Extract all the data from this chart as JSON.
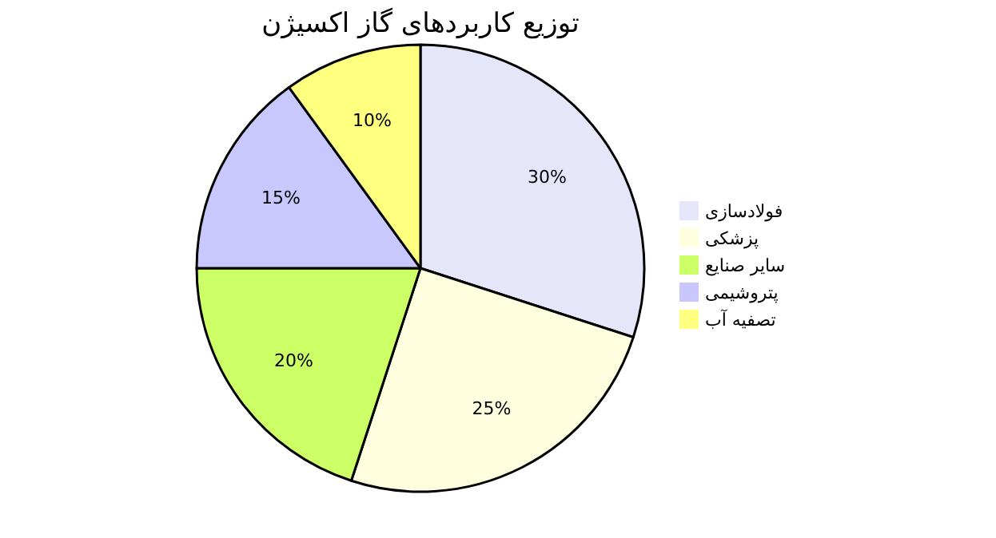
{
  "chart_data": {
    "type": "pie",
    "title": "توزیع کاربردهای گاز اکسیژن",
    "categories": [
      "فولادسازی",
      "پزشکی",
      "سایر صنایع",
      "پتروشیمی",
      "تصفیه آب"
    ],
    "values": [
      30,
      25,
      20,
      15,
      10
    ],
    "colors": [
      "#e6e6fa",
      "#ffffe0",
      "#ccff66",
      "#c8c8ff",
      "#ffff80"
    ],
    "value_labels": [
      "30%",
      "25%",
      "20%",
      "15%",
      "10%"
    ],
    "legend": "right"
  }
}
